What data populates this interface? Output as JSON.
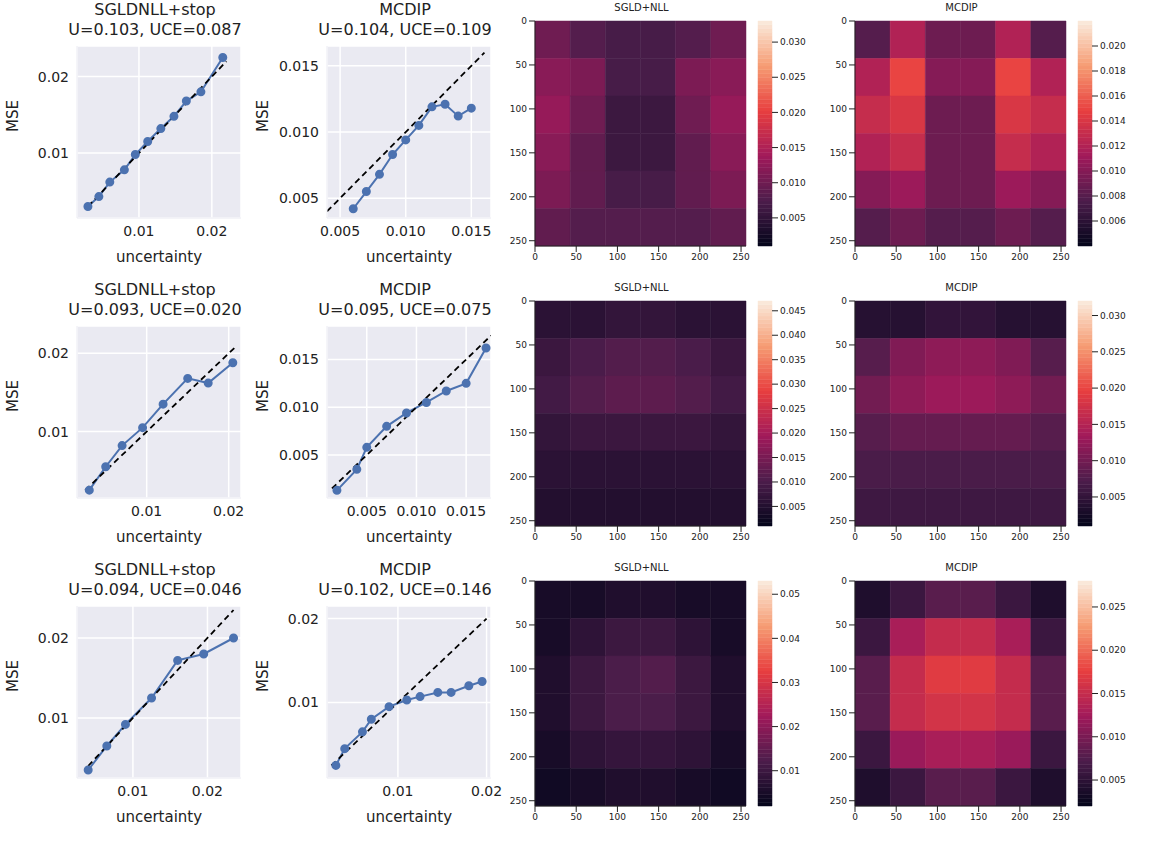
{
  "chart_data": [
    {
      "type": "line",
      "title": "SGLDNLL+stop",
      "subtitle": "U=0.103, UCE=0.087",
      "xlabel": "uncertainty",
      "ylabel": "MSE",
      "grid": true,
      "xlim": [
        0.0015,
        0.024
      ],
      "ylim": [
        0.0015,
        0.024
      ],
      "xticks": [
        0.01,
        0.02
      ],
      "yticks": [
        0.01,
        0.02
      ],
      "series": [
        {
          "color": "#4c72b0",
          "marker": "o",
          "line_style": "solid",
          "x": [
            0.003,
            0.0045,
            0.006,
            0.008,
            0.0095,
            0.0112,
            0.013,
            0.0148,
            0.0165,
            0.0185,
            0.0215
          ],
          "values": [
            0.003,
            0.0043,
            0.0062,
            0.0078,
            0.0098,
            0.0115,
            0.0132,
            0.0148,
            0.0168,
            0.018,
            0.0225
          ]
        },
        {
          "color": "#000000",
          "marker": "none",
          "line_style": "dashed",
          "x": [
            0.003,
            0.022
          ],
          "values": [
            0.003,
            0.022
          ]
        }
      ]
    },
    {
      "type": "line",
      "title": "MCDIP",
      "subtitle": "U=0.104, UCE=0.109",
      "xlabel": "uncertainty",
      "ylabel": "MSE",
      "grid": true,
      "xlim": [
        0.004,
        0.0165
      ],
      "ylim": [
        0.0035,
        0.0165
      ],
      "xticks": [
        0.005,
        {
          "value": 0.01,
          "label": "0.010"
        },
        0.015
      ],
      "yticks": [
        0.005,
        {
          "value": 0.01,
          "label": "0.010"
        },
        0.015
      ],
      "series": [
        {
          "color": "#4c72b0",
          "marker": "o",
          "line_style": "solid",
          "x": [
            0.006,
            0.007,
            0.008,
            0.009,
            0.01,
            0.011,
            0.012,
            0.013,
            0.014,
            0.015
          ],
          "values": [
            0.0042,
            0.0055,
            0.0068,
            0.0083,
            0.0094,
            0.0105,
            0.0119,
            0.0121,
            0.0112,
            0.0118
          ]
        },
        {
          "color": "#000000",
          "marker": "none",
          "line_style": "dashed",
          "x": [
            0.004,
            0.016
          ],
          "values": [
            0.004,
            0.016
          ]
        }
      ]
    },
    {
      "type": "heatmap",
      "title": "SGLD+NLL",
      "xlim": [
        0,
        256
      ],
      "ylim": [
        0,
        256
      ],
      "xticks": [
        0,
        50,
        100,
        150,
        200,
        250
      ],
      "yticks": [
        0,
        50,
        100,
        150,
        200,
        250
      ],
      "cells": [
        [
          0.01,
          0.008,
          0.007,
          0.007,
          0.008,
          0.01
        ],
        [
          0.012,
          0.011,
          0.007,
          0.007,
          0.011,
          0.012
        ],
        [
          0.013,
          0.01,
          0.006,
          0.006,
          0.01,
          0.013
        ],
        [
          0.012,
          0.009,
          0.006,
          0.006,
          0.009,
          0.012
        ],
        [
          0.011,
          0.009,
          0.007,
          0.007,
          0.009,
          0.011
        ],
        [
          0.009,
          0.008,
          0.008,
          0.008,
          0.008,
          0.009
        ]
      ],
      "colorbar_lim": [
        0.001,
        0.033
      ],
      "colorbar_ticks": [
        0.005,
        {
          "value": 0.01,
          "label": "0.010"
        },
        0.015,
        {
          "value": 0.02,
          "label": "0.020"
        },
        0.025,
        {
          "value": 0.03,
          "label": "0.030"
        }
      ]
    },
    {
      "type": "heatmap",
      "title": "MCDIP",
      "xlim": [
        0,
        256
      ],
      "ylim": [
        0,
        256
      ],
      "xticks": [
        0,
        50,
        100,
        150,
        200,
        250
      ],
      "yticks": [
        0,
        50,
        100,
        150,
        200,
        250
      ],
      "cells": [
        [
          0.008,
          0.012,
          0.009,
          0.009,
          0.012,
          0.008
        ],
        [
          0.012,
          0.015,
          0.01,
          0.01,
          0.015,
          0.012
        ],
        [
          0.013,
          0.014,
          0.009,
          0.009,
          0.014,
          0.013
        ],
        [
          0.012,
          0.013,
          0.009,
          0.009,
          0.013,
          0.012
        ],
        [
          0.01,
          0.011,
          0.009,
          0.009,
          0.011,
          0.01
        ],
        [
          0.008,
          0.009,
          0.008,
          0.008,
          0.009,
          0.008
        ]
      ],
      "colorbar_lim": [
        0.004,
        0.022
      ],
      "colorbar_ticks": [
        0.006,
        0.008,
        {
          "value": 0.01,
          "label": "0.010"
        },
        0.012,
        0.014,
        0.016,
        0.018,
        {
          "value": 0.02,
          "label": "0.020"
        }
      ]
    },
    {
      "type": "line",
      "title": "SGLDNLL+stop",
      "subtitle": "U=0.093, UCE=0.020",
      "xlabel": "uncertainty",
      "ylabel": "MSE",
      "grid": true,
      "xlim": [
        0.0015,
        0.0215
      ],
      "ylim": [
        0.0015,
        0.0235
      ],
      "xticks": [
        0.01,
        0.02
      ],
      "yticks": [
        0.01,
        0.02
      ],
      "series": [
        {
          "color": "#4c72b0",
          "marker": "o",
          "line_style": "solid",
          "x": [
            0.003,
            0.005,
            0.007,
            0.0095,
            0.012,
            0.015,
            0.0175,
            0.0205
          ],
          "values": [
            0.0025,
            0.0055,
            0.0082,
            0.0105,
            0.0135,
            0.0168,
            0.0162,
            0.0188
          ]
        },
        {
          "color": "#000000",
          "marker": "none",
          "line_style": "dashed",
          "x": [
            0.0025,
            0.021
          ],
          "values": [
            0.0025,
            0.021
          ]
        }
      ]
    },
    {
      "type": "line",
      "title": "MCDIP",
      "subtitle": "U=0.095, UCE=0.075",
      "xlabel": "uncertainty",
      "ylabel": "MSE",
      "grid": true,
      "xlim": [
        0.001,
        0.0175
      ],
      "ylim": [
        0.0005,
        0.0185
      ],
      "xticks": [
        0.005,
        {
          "value": 0.01,
          "label": "0.010"
        },
        0.015
      ],
      "yticks": [
        0.005,
        {
          "value": 0.01,
          "label": "0.010"
        },
        0.015
      ],
      "series": [
        {
          "color": "#4c72b0",
          "marker": "o",
          "line_style": "solid",
          "x": [
            0.002,
            0.004,
            0.005,
            0.007,
            0.009,
            0.011,
            0.013,
            0.015,
            0.017
          ],
          "values": [
            0.0013,
            0.0035,
            0.0058,
            0.008,
            0.0094,
            0.0105,
            0.0117,
            0.0125,
            0.0162
          ]
        },
        {
          "color": "#000000",
          "marker": "none",
          "line_style": "dashed",
          "x": [
            0.0015,
            0.0175
          ],
          "values": [
            0.0015,
            0.0175
          ]
        }
      ]
    },
    {
      "type": "heatmap",
      "title": "SGLD+NLL",
      "xlim": [
        0,
        256
      ],
      "ylim": [
        0,
        256
      ],
      "xticks": [
        0,
        50,
        100,
        150,
        200,
        250
      ],
      "yticks": [
        0,
        50,
        100,
        150,
        200,
        250
      ],
      "cells": [
        [
          0.006,
          0.006,
          0.007,
          0.007,
          0.006,
          0.006
        ],
        [
          0.008,
          0.01,
          0.011,
          0.011,
          0.01,
          0.008
        ],
        [
          0.009,
          0.011,
          0.012,
          0.012,
          0.011,
          0.009
        ],
        [
          0.007,
          0.008,
          0.008,
          0.008,
          0.008,
          0.007
        ],
        [
          0.006,
          0.006,
          0.006,
          0.006,
          0.006,
          0.006
        ],
        [
          0.005,
          0.005,
          0.005,
          0.005,
          0.005,
          0.005
        ]
      ],
      "colorbar_lim": [
        0.001,
        0.047
      ],
      "colorbar_ticks": [
        0.005,
        {
          "value": 0.01,
          "label": "0.010"
        },
        0.015,
        {
          "value": 0.02,
          "label": "0.020"
        },
        0.025,
        {
          "value": 0.03,
          "label": "0.030"
        },
        0.035,
        {
          "value": 0.04,
          "label": "0.040"
        },
        0.045
      ]
    },
    {
      "type": "heatmap",
      "title": "MCDIP",
      "xlim": [
        0,
        256
      ],
      "ylim": [
        0,
        256
      ],
      "xticks": [
        0,
        50,
        100,
        150,
        200,
        250
      ],
      "yticks": [
        0,
        50,
        100,
        150,
        200,
        250
      ],
      "cells": [
        [
          0.004,
          0.004,
          0.005,
          0.005,
          0.004,
          0.004
        ],
        [
          0.008,
          0.011,
          0.012,
          0.012,
          0.011,
          0.008
        ],
        [
          0.01,
          0.012,
          0.013,
          0.013,
          0.012,
          0.01
        ],
        [
          0.008,
          0.009,
          0.009,
          0.009,
          0.009,
          0.008
        ],
        [
          0.007,
          0.007,
          0.007,
          0.007,
          0.007,
          0.007
        ],
        [
          0.006,
          0.006,
          0.006,
          0.006,
          0.006,
          0.006
        ]
      ],
      "colorbar_lim": [
        0.001,
        0.032
      ],
      "colorbar_ticks": [
        0.005,
        {
          "value": 0.01,
          "label": "0.010"
        },
        0.015,
        {
          "value": 0.02,
          "label": "0.020"
        },
        0.025,
        {
          "value": 0.03,
          "label": "0.030"
        }
      ]
    },
    {
      "type": "line",
      "title": "SGLDNLL+stop",
      "subtitle": "U=0.094, UCE=0.046",
      "xlabel": "uncertainty",
      "ylabel": "MSE",
      "grid": true,
      "xlim": [
        0.0025,
        0.0245
      ],
      "ylim": [
        0.0025,
        0.024
      ],
      "xticks": [
        0.01,
        0.02
      ],
      "yticks": [
        0.01,
        0.02
      ],
      "series": [
        {
          "color": "#4c72b0",
          "marker": "o",
          "line_style": "solid",
          "x": [
            0.004,
            0.0065,
            0.009,
            0.0125,
            0.016,
            0.0195,
            0.0235
          ],
          "values": [
            0.0035,
            0.0065,
            0.0092,
            0.0125,
            0.0172,
            0.018,
            0.02
          ]
        },
        {
          "color": "#000000",
          "marker": "none",
          "line_style": "dashed",
          "x": [
            0.004,
            0.0235
          ],
          "values": [
            0.004,
            0.0235
          ]
        }
      ]
    },
    {
      "type": "line",
      "title": "MCDIP",
      "subtitle": "U=0.102, UCE=0.146",
      "xlabel": "uncertainty",
      "ylabel": "MSE",
      "grid": true,
      "xlim": [
        0.002,
        0.0205
      ],
      "ylim": [
        0.001,
        0.0215
      ],
      "xticks": [
        0.01,
        0.02
      ],
      "yticks": [
        0.01,
        0.02
      ],
      "series": [
        {
          "color": "#4c72b0",
          "marker": "o",
          "line_style": "solid",
          "x": [
            0.003,
            0.004,
            0.006,
            0.007,
            0.009,
            0.011,
            0.0125,
            0.0145,
            0.016,
            0.018,
            0.0195
          ],
          "values": [
            0.0025,
            0.0045,
            0.0065,
            0.008,
            0.0095,
            0.0103,
            0.0107,
            0.0112,
            0.0112,
            0.012,
            0.0125
          ]
        },
        {
          "color": "#000000",
          "marker": "none",
          "line_style": "dashed",
          "x": [
            0.0025,
            0.02
          ],
          "values": [
            0.0025,
            0.02
          ]
        }
      ]
    },
    {
      "type": "heatmap",
      "title": "SGLD+NLL",
      "xlim": [
        0,
        256
      ],
      "ylim": [
        0,
        256
      ],
      "xticks": [
        0,
        50,
        100,
        150,
        200,
        250
      ],
      "yticks": [
        0,
        50,
        100,
        150,
        200,
        250
      ],
      "cells": [
        [
          0.005,
          0.005,
          0.006,
          0.006,
          0.005,
          0.005
        ],
        [
          0.005,
          0.008,
          0.01,
          0.01,
          0.008,
          0.005
        ],
        [
          0.006,
          0.01,
          0.012,
          0.013,
          0.01,
          0.006
        ],
        [
          0.006,
          0.01,
          0.012,
          0.012,
          0.01,
          0.006
        ],
        [
          0.005,
          0.008,
          0.009,
          0.009,
          0.008,
          0.005
        ],
        [
          0.004,
          0.005,
          0.006,
          0.006,
          0.005,
          0.004
        ]
      ],
      "colorbar_lim": [
        0.002,
        0.053
      ],
      "colorbar_ticks": [
        0.01,
        0.02,
        0.03,
        0.04,
        0.05
      ]
    },
    {
      "type": "heatmap",
      "title": "MCDIP",
      "xlim": [
        0,
        256
      ],
      "ylim": [
        0,
        256
      ],
      "xticks": [
        0,
        50,
        100,
        150,
        200,
        250
      ],
      "yticks": [
        0,
        50,
        100,
        150,
        200,
        250
      ],
      "cells": [
        [
          0.004,
          0.006,
          0.008,
          0.008,
          0.006,
          0.004
        ],
        [
          0.006,
          0.013,
          0.015,
          0.015,
          0.013,
          0.006
        ],
        [
          0.008,
          0.015,
          0.017,
          0.017,
          0.015,
          0.008
        ],
        [
          0.008,
          0.015,
          0.016,
          0.016,
          0.015,
          0.008
        ],
        [
          0.006,
          0.012,
          0.013,
          0.013,
          0.012,
          0.006
        ],
        [
          0.004,
          0.006,
          0.008,
          0.008,
          0.006,
          0.004
        ]
      ],
      "colorbar_lim": [
        0.002,
        0.028
      ],
      "colorbar_ticks": [
        0.005,
        {
          "value": 0.01,
          "label": "0.010"
        },
        0.015,
        {
          "value": 0.02,
          "label": "0.020"
        },
        0.025
      ]
    }
  ]
}
